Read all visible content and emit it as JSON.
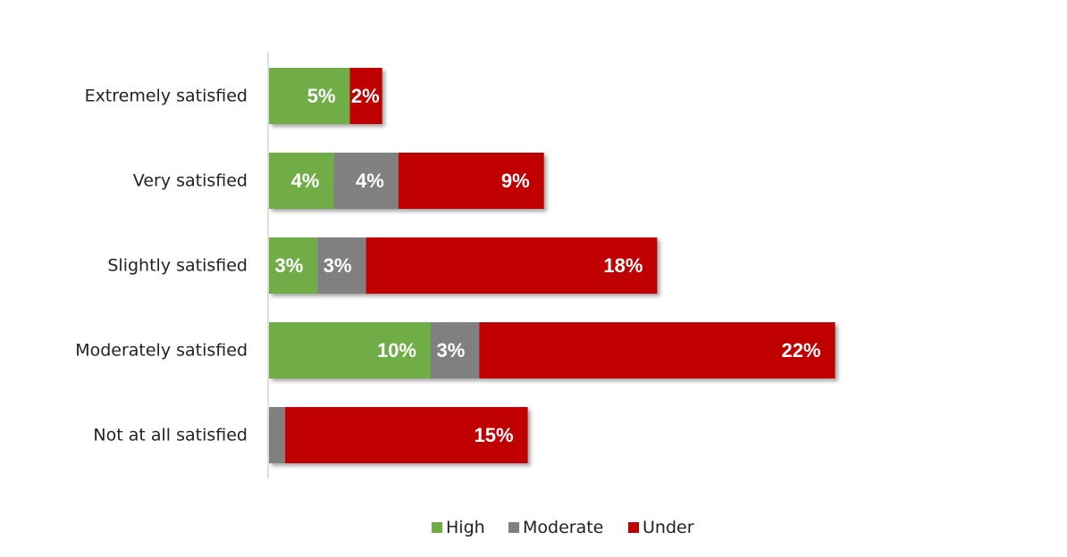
{
  "chart_data": {
    "type": "bar",
    "orientation": "horizontal",
    "stacked": true,
    "title": "",
    "xlabel": "",
    "ylabel": "",
    "categories": [
      "Extremely satisfied",
      "Very satisfied",
      "Slightly satisfied",
      "Moderately satisfied",
      "Not at all satisfied"
    ],
    "series": [
      {
        "name": "High",
        "color": "#70ad47",
        "values": [
          5,
          4,
          3,
          10,
          0
        ],
        "labels": [
          "5%",
          "4%",
          "3%",
          "10%",
          ""
        ]
      },
      {
        "name": "Moderate",
        "color": "#808080",
        "values": [
          0,
          4,
          3,
          3,
          1
        ],
        "labels": [
          "",
          "4%",
          "3%",
          "3%",
          ""
        ]
      },
      {
        "name": "Under",
        "color": "#c00000",
        "values": [
          2,
          9,
          18,
          22,
          15
        ],
        "labels": [
          "2%",
          "9%",
          "18%",
          "22%",
          "15%"
        ]
      }
    ],
    "xlim": [
      0,
      35
    ],
    "grid": false,
    "legend_position": "bottom"
  }
}
